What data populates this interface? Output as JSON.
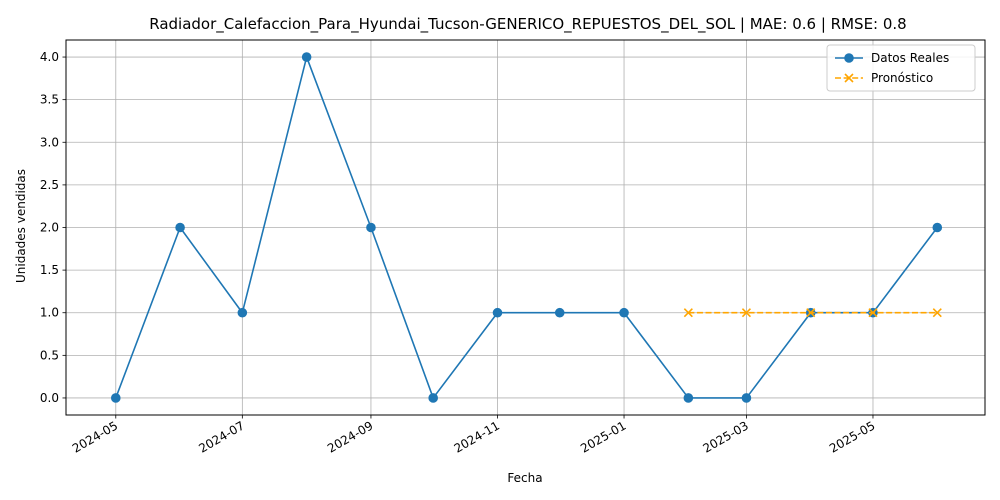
{
  "chart_data": {
    "type": "line",
    "title": "Radiador_Calefaccion_Para_Hyundai_Tucson-GENERICO_REPUESTOS_DEL_SOL | MAE: 0.6 | RMSE: 0.8",
    "xlabel": "Fecha",
    "ylabel": "Unidades vendidas",
    "x_axis_type": "date",
    "xlim": [
      "2024-04-07",
      "2025-06-24"
    ],
    "ylim": [
      -0.2,
      4.2
    ],
    "x_ticks": [
      "2024-05",
      "2024-07",
      "2024-09",
      "2024-11",
      "2025-01",
      "2025-03",
      "2025-05"
    ],
    "x_tick_dates": [
      "2024-05-01",
      "2024-07-01",
      "2024-09-01",
      "2024-11-01",
      "2025-01-01",
      "2025-03-01",
      "2025-05-01"
    ],
    "y_ticks": [
      "0.0",
      "0.5",
      "1.0",
      "1.5",
      "2.0",
      "2.5",
      "3.0",
      "3.5",
      "4.0"
    ],
    "y_tick_values": [
      0,
      0.5,
      1,
      1.5,
      2,
      2.5,
      3,
      3.5,
      4
    ],
    "grid": true,
    "legend_position": "top-right",
    "series": [
      {
        "name": "Datos Reales",
        "color": "#1f77b4",
        "linestyle": "solid",
        "marker": "circle",
        "x": [
          "2024-05-01",
          "2024-06-01",
          "2024-07-01",
          "2024-08-01",
          "2024-09-01",
          "2024-10-01",
          "2024-11-01",
          "2024-12-01",
          "2025-01-01",
          "2025-02-01",
          "2025-03-01",
          "2025-04-01",
          "2025-05-01",
          "2025-06-01"
        ],
        "values": [
          0,
          2,
          1,
          4,
          2,
          0,
          1,
          1,
          1,
          0,
          0,
          1,
          1,
          2
        ]
      },
      {
        "name": "Pronóstico",
        "color": "#ffa500",
        "linestyle": "dashed",
        "marker": "x",
        "x": [
          "2025-02-01",
          "2025-03-01",
          "2025-04-01",
          "2025-05-01",
          "2025-06-01"
        ],
        "values": [
          1,
          1,
          1,
          1,
          1
        ]
      }
    ]
  }
}
